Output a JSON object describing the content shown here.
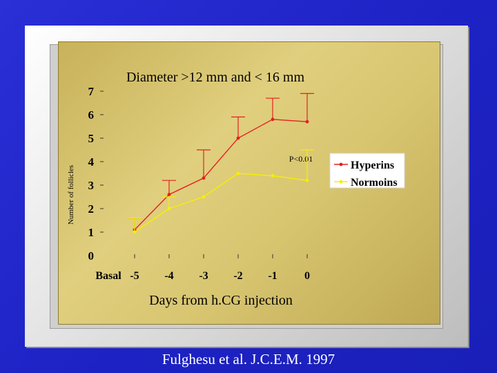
{
  "chart_data": {
    "type": "line",
    "title": "Diameter >12 mm and < 16 mm",
    "xlabel": "Days from h.CG injection",
    "ylabel": "Number of follicles",
    "categories": [
      "Basal",
      "-5",
      "-4",
      "-3",
      "-2",
      "-1",
      "0"
    ],
    "yticks": [
      "0",
      "1",
      "2",
      "3",
      "4",
      "5",
      "6",
      "7"
    ],
    "ylim": [
      0,
      7
    ],
    "grid": false,
    "legend_position": "right",
    "annotation": "P<0.01",
    "series": [
      {
        "name": "Hyperins",
        "color": "#e32020",
        "x": [
          "-5",
          "-4",
          "-3",
          "-2",
          "-1",
          "0"
        ],
        "values": [
          1.1,
          2.6,
          3.3,
          5.0,
          5.8,
          5.7
        ],
        "error_upper": [
          0.5,
          0.6,
          1.2,
          0.9,
          0.9,
          1.2
        ]
      },
      {
        "name": "Normoins",
        "color": "#f5f000",
        "x": [
          "-5",
          "-4",
          "-3",
          "-2",
          "-1",
          "0"
        ],
        "values": [
          1.0,
          2.0,
          2.5,
          3.5,
          3.4,
          3.2
        ],
        "error_upper": [
          0.6,
          0.5,
          0.0,
          0.0,
          0.0,
          1.3
        ]
      }
    ]
  },
  "citation": "Fulghesu et al. J.C.E.M. 1997"
}
